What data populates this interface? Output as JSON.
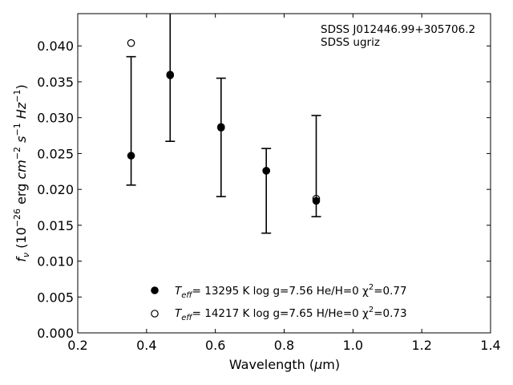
{
  "chart_data": {
    "type": "scatter",
    "title": "",
    "xlabel": "Wavelength (μm)",
    "ylabel": "fν (10⁻²⁶ erg cm⁻² s⁻¹ Hz⁻¹)",
    "xlim": [
      0.2,
      1.4
    ],
    "ylim": [
      0.0,
      0.0445
    ],
    "xticks": [
      0.2,
      0.4,
      0.6,
      0.8,
      1.0,
      1.2,
      1.4
    ],
    "xtick_labels": [
      "0.2",
      "0.4",
      "0.6",
      "0.8",
      "1.0",
      "1.2",
      "1.4"
    ],
    "yticks": [
      0.0,
      0.005,
      0.01,
      0.015,
      0.02,
      0.025,
      0.03,
      0.035,
      0.04
    ],
    "ytick_labels": [
      "0.000",
      "0.005",
      "0.010",
      "0.015",
      "0.020",
      "0.025",
      "0.030",
      "0.035",
      "0.040"
    ],
    "grid": false,
    "legend_position": "bottom-center",
    "annotation": [
      "SDSS J012446.99+305706.2",
      "SDSS ugriz"
    ],
    "observed": {
      "x": [
        0.3551,
        0.4686,
        0.6166,
        0.748,
        0.8932
      ],
      "y": [
        0.0247,
        0.0361,
        0.0287,
        0.0226,
        0.0183
      ],
      "yerr_low": [
        0.0206,
        0.0267,
        0.019,
        0.0139,
        0.0162
      ],
      "yerr_high": [
        0.0385,
        0.0445,
        0.0355,
        0.0257,
        0.0303
      ],
      "marker": "error bars"
    },
    "series": [
      {
        "name": "Teff= 13295 K  log g=7.56  He/H=0  χ²=0.77",
        "marker": "filled circle",
        "color": "#000000",
        "x": [
          0.3551,
          0.4686,
          0.6166,
          0.748,
          0.8932
        ],
        "y": [
          0.0247,
          0.036,
          0.0287,
          0.0226,
          0.0184
        ]
      },
      {
        "name": "Teff= 14217 K  log g=7.65  H/He=0  χ²=0.73",
        "marker": "open circle",
        "color": "#000000",
        "x": [
          0.3551,
          0.4686,
          0.6166,
          0.748,
          0.8932
        ],
        "y": [
          0.0404,
          0.0359,
          0.0286,
          0.0226,
          0.0187
        ]
      }
    ],
    "legend": [
      {
        "marker": "filled",
        "prefix": "T",
        "sub": "eff",
        "text": "= 13295 K  log g=7.56  He/H=0  χ",
        "sup": "2",
        "tail": "=0.77"
      },
      {
        "marker": "open",
        "prefix": "T",
        "sub": "eff",
        "text": "= 14217 K  log g=7.65  H/He=0  χ",
        "sup": "2",
        "tail": "=0.73"
      }
    ]
  }
}
